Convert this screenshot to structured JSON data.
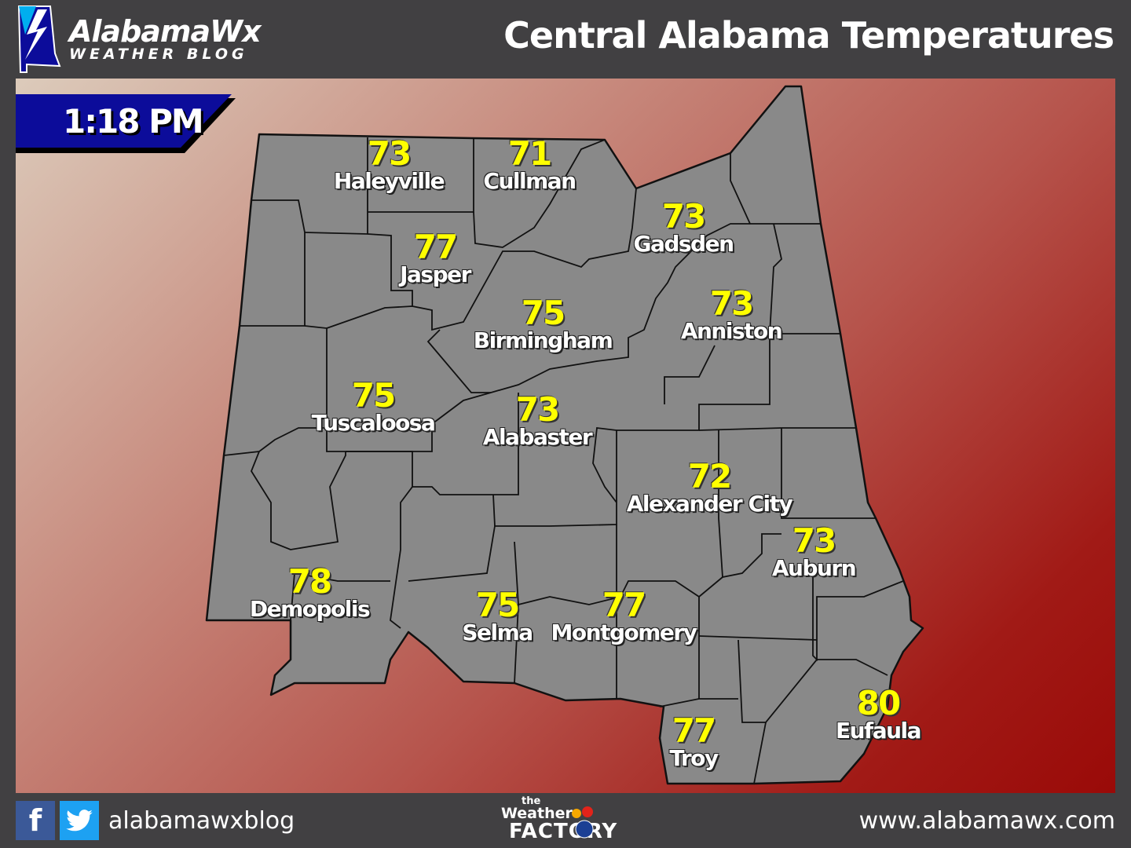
{
  "header": {
    "logo_title": "AlabamaWx",
    "logo_subtitle": "WEATHER BLOG",
    "title": "Central Alabama Temperatures"
  },
  "time": "1:18 PM",
  "colors": {
    "background": "#414042",
    "banner": "#0c0c9a",
    "temp_text": "#ffff00",
    "county_fill": "#898989",
    "gradient_start": "#dccbbb",
    "gradient_end": "#9a0a08"
  },
  "stations": [
    {
      "city": "Haleyville",
      "temp": "73"
    },
    {
      "city": "Cullman",
      "temp": "71"
    },
    {
      "city": "Gadsden",
      "temp": "73"
    },
    {
      "city": "Jasper",
      "temp": "77"
    },
    {
      "city": "Birmingham",
      "temp": "75"
    },
    {
      "city": "Anniston",
      "temp": "73"
    },
    {
      "city": "Tuscaloosa",
      "temp": "75"
    },
    {
      "city": "Alabaster",
      "temp": "73"
    },
    {
      "city": "Alexander City",
      "temp": "72"
    },
    {
      "city": "Auburn",
      "temp": "73"
    },
    {
      "city": "Demopolis",
      "temp": "78"
    },
    {
      "city": "Selma",
      "temp": "75"
    },
    {
      "city": "Montgomery",
      "temp": "77"
    },
    {
      "city": "Troy",
      "temp": "77"
    },
    {
      "city": "Eufaula",
      "temp": "80"
    }
  ],
  "footer": {
    "social_handle": "alabamawxblog",
    "sponsor_small": "the",
    "sponsor_line1": "Weather",
    "sponsor_line2": "FACTORY",
    "url": "www.alabamawx.com",
    "icons": [
      "facebook-icon",
      "twitter-icon"
    ]
  }
}
